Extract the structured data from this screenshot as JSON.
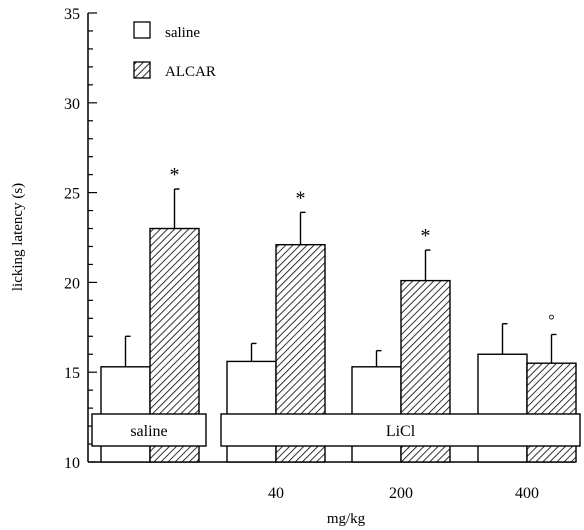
{
  "chart_data": {
    "type": "bar",
    "ylabel": "licking latency (s)",
    "xlabel": "mg/kg",
    "ylim": [
      10,
      35
    ],
    "yticks": [
      10,
      15,
      20,
      25,
      30,
      35
    ],
    "groups": [
      {
        "dose": "",
        "treatment": "saline",
        "sig": [
          "",
          "*"
        ]
      },
      {
        "dose": "40",
        "treatment": "LiCl",
        "sig": [
          "",
          "*"
        ]
      },
      {
        "dose": "200",
        "treatment": "LiCl",
        "sig": [
          "",
          "*"
        ]
      },
      {
        "dose": "400",
        "treatment": "LiCl",
        "sig": [
          "",
          "°"
        ]
      }
    ],
    "series": [
      {
        "name": "saline",
        "values": [
          15.3,
          15.6,
          15.3,
          16.0
        ],
        "errors": [
          1.7,
          1.0,
          0.9,
          1.7
        ],
        "fill": "#ffffff"
      },
      {
        "name": "ALCAR",
        "values": [
          23.0,
          22.1,
          20.1,
          15.5
        ],
        "errors": [
          2.2,
          1.8,
          1.7,
          1.6
        ],
        "fill": "hatch"
      }
    ],
    "boxes": [
      "saline",
      "LiCl"
    ],
    "legend": {
      "position": "top-left"
    }
  }
}
